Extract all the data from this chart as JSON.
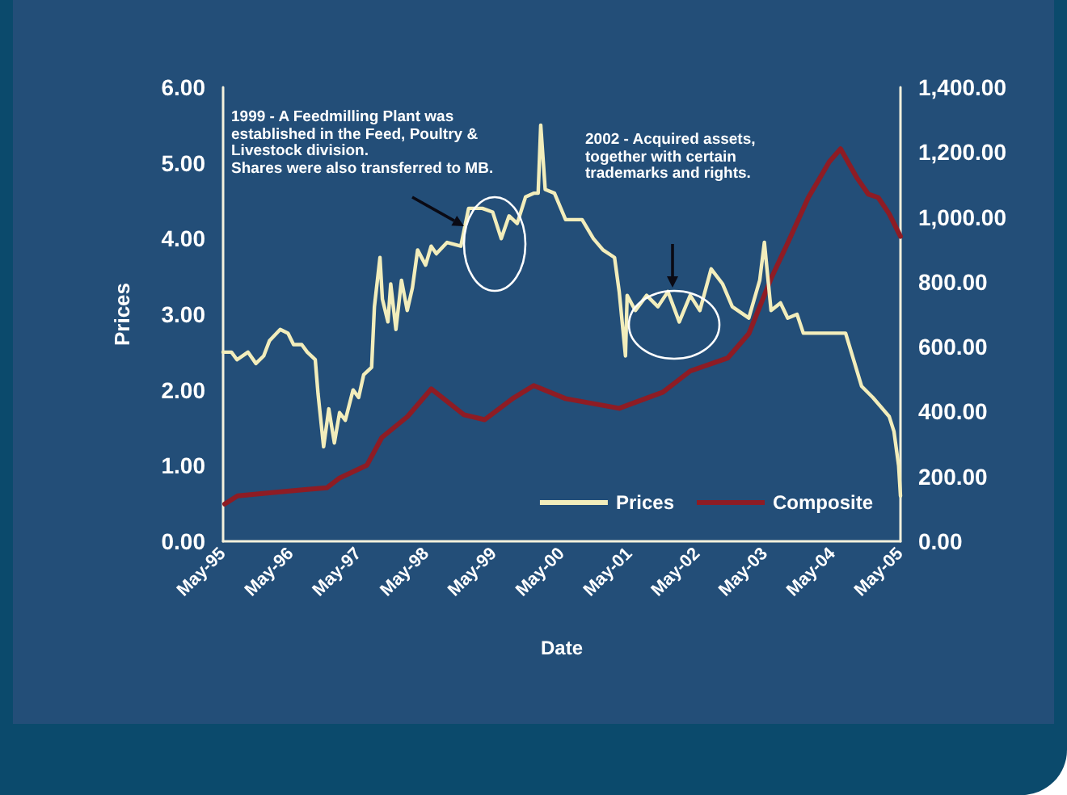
{
  "chart_data": {
    "type": "line",
    "xlabel": "Date",
    "ylabel": "Prices",
    "legend": "bottom right",
    "xlim": [
      "1995-05",
      "2005-05"
    ],
    "xticks": [
      {
        "value": "1995-05",
        "label": "May-95"
      },
      {
        "value": "1996-05",
        "label": "May-96"
      },
      {
        "value": "1997-05",
        "label": "May-97"
      },
      {
        "value": "1998-05",
        "label": "May-98"
      },
      {
        "value": "1999-05",
        "label": "May-99"
      },
      {
        "value": "2000-05",
        "label": "May-00"
      },
      {
        "value": "2001-05",
        "label": "May-01"
      },
      {
        "value": "2002-05",
        "label": "May-02"
      },
      {
        "value": "2003-05",
        "label": "May-03"
      },
      {
        "value": "2004-05",
        "label": "May-04"
      },
      {
        "value": "2005-05",
        "label": "May-05"
      }
    ],
    "ylim": [
      0,
      6
    ],
    "yticks": [
      {
        "value": 0,
        "label": "0.00"
      },
      {
        "value": 1,
        "label": "1.00"
      },
      {
        "value": 2,
        "label": "2.00"
      },
      {
        "value": 3,
        "label": "3.00"
      },
      {
        "value": 4,
        "label": "4.00"
      },
      {
        "value": 5,
        "label": "5.00"
      },
      {
        "value": 6,
        "label": "6.00"
      }
    ],
    "y2lim": [
      0,
      1400
    ],
    "y2ticks": [
      {
        "value": 0,
        "label": "0.00"
      },
      {
        "value": 200,
        "label": "200.00"
      },
      {
        "value": 400,
        "label": "400.00"
      },
      {
        "value": 600,
        "label": "600.00"
      },
      {
        "value": 800,
        "label": "800.00"
      },
      {
        "value": 1000,
        "label": "1,000.00"
      },
      {
        "value": 1200,
        "label": "1,200.00"
      },
      {
        "value": 1400,
        "label": "1,400.00"
      }
    ],
    "annotations": [
      "1999 - A Feedmilling Plant was\nestablished in the Feed, Poultry &\nLivestock division.\nShares were also transferred to MB.",
      "2002 - Acquired assets,\ntogether with certain\ntrademarks and rights."
    ],
    "series": [
      {
        "name": "Prices",
        "color": "#f2edbb",
        "x": [
          "1995-05-01",
          "1995-06-15",
          "1995-07-15",
          "1995-09-12",
          "1995-10-25",
          "1995-12-06",
          "1996-01-06",
          "1996-03-04",
          "1996-04-15",
          "1996-05-15",
          "1996-06-28",
          "1996-07-28",
          "1996-09-09",
          "1996-09-24",
          "1996-10-24",
          "1996-11-21",
          "1996-12-21",
          "1997-01-18",
          "1997-02-18",
          "1997-04-01",
          "1997-05-01",
          "1997-05-28",
          "1997-07-10",
          "1997-07-25",
          "1997-08-24",
          "1997-09-06",
          "1997-10-06",
          "1997-10-21",
          "1997-11-18",
          "1997-12-18",
          "1998-01-18",
          "1998-02-15",
          "1998-03-15",
          "1998-04-27",
          "1998-05-27",
          "1998-06-24",
          "1998-08-21",
          "1998-11-03",
          "1998-12-15",
          "1999-02-27",
          "1999-04-24",
          "1999-06-09",
          "1999-07-21",
          "1999-09-03",
          "1999-10-18",
          "1999-12-01",
          "1999-12-25",
          "2000-01-08",
          "2000-02-01",
          "2000-03-22",
          "2000-05-21",
          "2000-08-18",
          "2000-10-18",
          "2000-12-09",
          "2001-02-09",
          "2001-03-06",
          "2001-04-09",
          "2001-04-18",
          "2001-06-01",
          "2001-08-01",
          "2001-10-01",
          "2001-11-24",
          "2002-01-24",
          "2002-03-24",
          "2002-05-15",
          "2002-07-15",
          "2002-09-15",
          "2002-11-06",
          "2003-02-03",
          "2003-04-03",
          "2003-04-28",
          "2003-06-03",
          "2003-07-24",
          "2003-09-01",
          "2003-10-21",
          "2003-11-24",
          "2004-07-09",
          "2004-08-21",
          "2004-10-03",
          "2004-12-03",
          "2005-03-01",
          "2005-03-27",
          "2005-04-21",
          "2005-05-01"
        ],
        "values": [
          2.5,
          2.5,
          2.4,
          2.5,
          2.35,
          2.45,
          2.65,
          2.8,
          2.75,
          2.6,
          2.6,
          2.5,
          2.4,
          1.95,
          1.25,
          1.75,
          1.3,
          1.7,
          1.6,
          2.0,
          1.9,
          2.2,
          2.3,
          3.1,
          3.75,
          3.2,
          2.9,
          3.4,
          2.8,
          3.45,
          3.05,
          3.35,
          3.85,
          3.65,
          3.9,
          3.8,
          3.95,
          3.9,
          4.4,
          4.4,
          4.35,
          4.0,
          4.3,
          4.2,
          4.55,
          4.6,
          4.6,
          5.5,
          4.65,
          4.6,
          4.25,
          4.25,
          4.0,
          3.85,
          3.75,
          3.3,
          2.45,
          3.25,
          3.05,
          3.25,
          3.1,
          3.3,
          2.9,
          3.25,
          3.05,
          3.6,
          3.4,
          3.1,
          2.95,
          3.45,
          3.95,
          3.05,
          3.15,
          2.95,
          3.0,
          2.75,
          2.75,
          2.4,
          2.05,
          1.9,
          1.65,
          1.45,
          1.0,
          0.6
        ]
      },
      {
        "name": "Composite",
        "color": "#8e1c24",
        "axis": "y2",
        "x": [
          "1995-05-10",
          "1995-07-18",
          "1996-01-18",
          "1996-07-28",
          "1996-11-10",
          "1997-01-18",
          "1997-06-15",
          "1997-09-03",
          "1998-01-20",
          "1998-05-28",
          "1998-11-20",
          "1999-03-12",
          "1999-08-09",
          "1999-12-01",
          "2000-05-21",
          "2001-03-06",
          "2001-10-28",
          "2002-03-24",
          "2002-10-12",
          "2003-02-03",
          "2003-06-03",
          "2003-09-01",
          "2003-12-21",
          "2004-04-12",
          "2004-06-12",
          "2004-09-09",
          "2004-11-09",
          "2005-01-01",
          "2005-03-01",
          "2005-05-01"
        ],
        "values": [
          115,
          140,
          150,
          160,
          165,
          195,
          235,
          320,
          385,
          470,
          390,
          375,
          440,
          480,
          440,
          410,
          460,
          525,
          565,
          640,
          810,
          920,
          1060,
          1170,
          1210,
          1120,
          1070,
          1060,
          1010,
          940
        ]
      }
    ]
  }
}
